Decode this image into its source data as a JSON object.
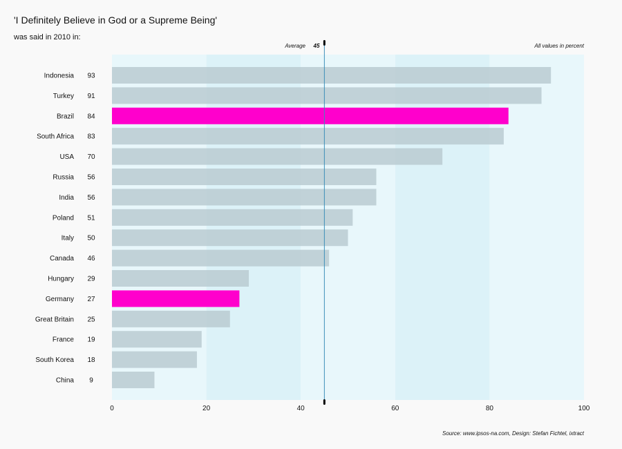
{
  "chart_data": {
    "type": "bar",
    "orientation": "horizontal",
    "title": "'I Definitely Believe in God or a Supreme Being'",
    "subtitle": "was said in 2010 in:",
    "categories": [
      "Indonesia",
      "Turkey",
      "Brazil",
      "South Africa",
      "USA",
      "Russia",
      "India",
      "Poland",
      "Italy",
      "Canada",
      "Hungary",
      "Germany",
      "Great Britain",
      "France",
      "South Korea",
      "China"
    ],
    "values": [
      93,
      91,
      84,
      83,
      70,
      56,
      56,
      51,
      50,
      46,
      29,
      27,
      25,
      19,
      18,
      9
    ],
    "highlighted": [
      "Brazil",
      "Germany"
    ],
    "average": {
      "label": "Average",
      "value": 45
    },
    "xlim": [
      0,
      100
    ],
    "xticks": [
      0,
      20,
      40,
      60,
      80,
      100
    ],
    "units_note": "All values in percent",
    "source": "Source: www.ipsos-na.com, Design: Stefan Fichtel, ixtract",
    "grid": false,
    "colors": {
      "bar": "#b8c9cf",
      "highlight": "#ff00cc",
      "band_light": "#e8f7fb",
      "band_dark": "#dcf2f8",
      "average_line": "#3b8fb8"
    }
  }
}
